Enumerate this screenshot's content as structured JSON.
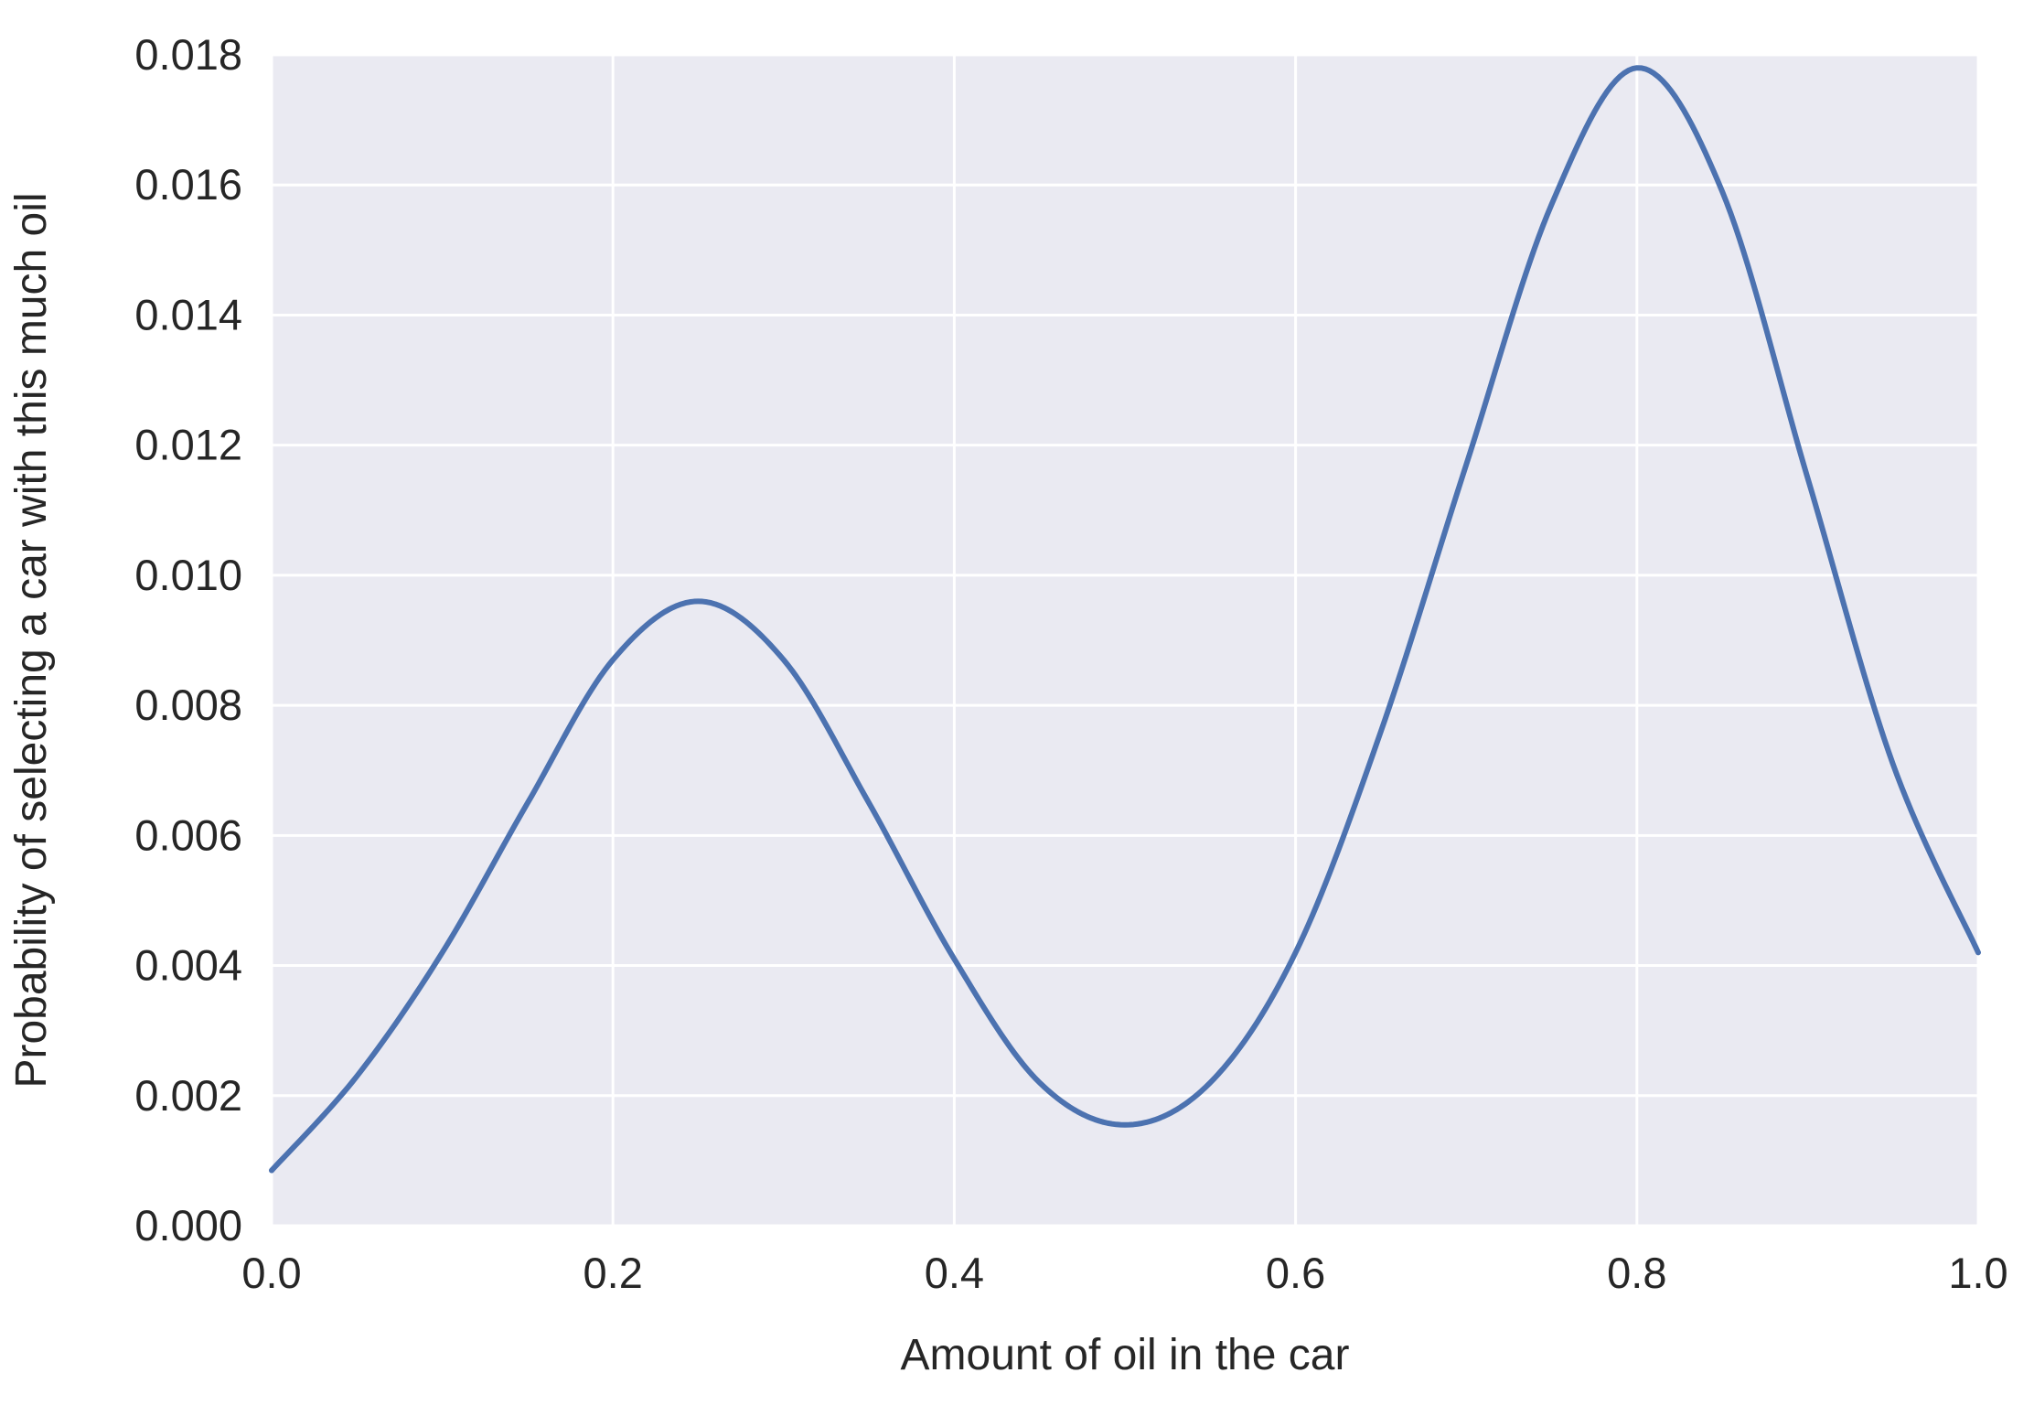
{
  "chart_data": {
    "type": "line",
    "title": "",
    "xlabel": "Amount of oil in the car",
    "ylabel": "Probability of selecting a car with this much oil",
    "xlim": [
      0.0,
      1.0
    ],
    "ylim": [
      0.0,
      0.018
    ],
    "xticks": [
      "0.0",
      "0.2",
      "0.4",
      "0.6",
      "0.8",
      "1.0"
    ],
    "yticks": [
      "0.000",
      "0.002",
      "0.004",
      "0.006",
      "0.008",
      "0.010",
      "0.012",
      "0.014",
      "0.016",
      "0.018"
    ],
    "grid": true,
    "legend": "none",
    "background_color": "#EAEAF2",
    "series": [
      {
        "color": "#4C72B0",
        "x": [
          0.0,
          0.05,
          0.1,
          0.15,
          0.2,
          0.25,
          0.3,
          0.35,
          0.4,
          0.45,
          0.5,
          0.55,
          0.6,
          0.65,
          0.7,
          0.75,
          0.8,
          0.85,
          0.9,
          0.95,
          1.0
        ],
        "y": [
          0.00085,
          0.0023,
          0.0042,
          0.0065,
          0.0087,
          0.0096,
          0.0087,
          0.0065,
          0.0041,
          0.0022,
          0.00155,
          0.0022,
          0.0042,
          0.0076,
          0.0117,
          0.0157,
          0.0178,
          0.0159,
          0.0115,
          0.0071,
          0.0042
        ]
      }
    ]
  }
}
